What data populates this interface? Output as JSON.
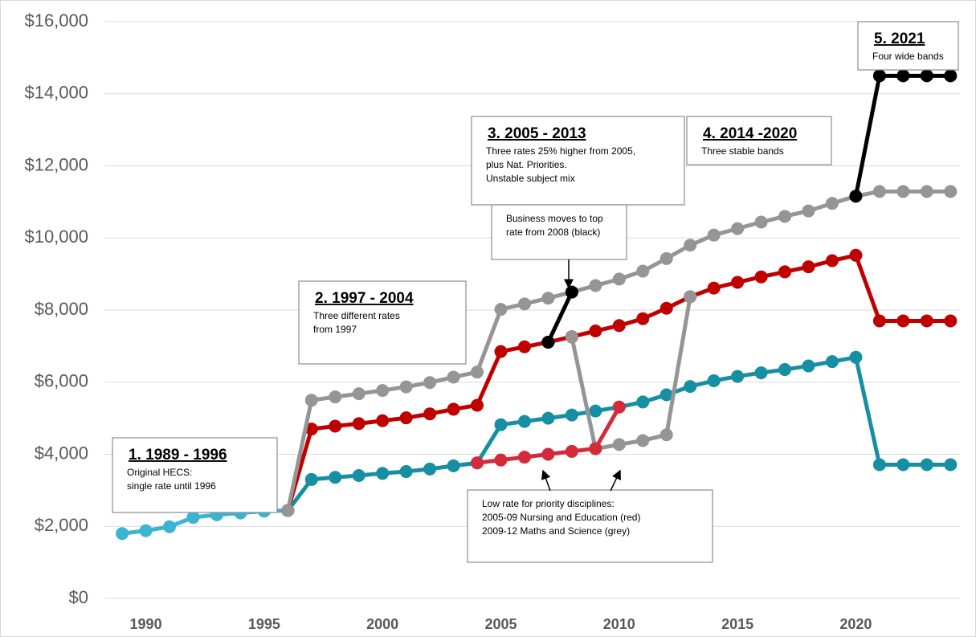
{
  "chart_data": {
    "type": "line",
    "x": [
      1989,
      1990,
      1991,
      1992,
      1993,
      1994,
      1995,
      1996,
      1997,
      1998,
      1999,
      2000,
      2001,
      2002,
      2003,
      2004,
      2005,
      2006,
      2007,
      2008,
      2009,
      2010,
      2011,
      2012,
      2013,
      2014,
      2015,
      2016,
      2017,
      2018,
      2019,
      2020,
      2021,
      2022,
      2023,
      2024
    ],
    "series": [
      {
        "color": "#3bb4d3",
        "values": [
          1800,
          1880,
          1990,
          2250,
          2320,
          2370,
          2420,
          2440,
          null,
          null,
          null,
          null,
          null,
          null,
          null,
          null,
          null,
          null,
          null,
          null,
          null,
          null,
          null,
          null,
          null,
          null,
          null,
          null,
          null,
          null,
          null,
          null,
          null,
          null,
          null,
          null
        ]
      },
      {
        "color": "#178fa3",
        "values": [
          null,
          null,
          null,
          null,
          null,
          null,
          null,
          2440,
          3300,
          3360,
          3410,
          3470,
          3520,
          3590,
          3680,
          3760,
          4820,
          4910,
          5000,
          5090,
          5200,
          5310,
          5450,
          5650,
          5880,
          6040,
          6160,
          6260,
          6350,
          6450,
          6570,
          6690,
          3710,
          3710,
          3710,
          3710
        ]
      },
      {
        "color": "#c00000",
        "values": [
          null,
          null,
          null,
          null,
          null,
          null,
          null,
          2440,
          4700,
          4780,
          4850,
          4930,
          5010,
          5120,
          5250,
          5360,
          6850,
          6980,
          7110,
          7260,
          7420,
          7570,
          7760,
          8050,
          8370,
          8610,
          8770,
          8920,
          9060,
          9200,
          9370,
          9520,
          7700,
          7700,
          7700,
          7700
        ]
      },
      {
        "color": "#959595",
        "values": [
          null,
          null,
          null,
          null,
          null,
          null,
          null,
          2440,
          5500,
          5590,
          5680,
          5770,
          5870,
          5990,
          6140,
          6280,
          8020,
          8170,
          8330,
          8500,
          8680,
          8860,
          9080,
          9430,
          9800,
          10080,
          10260,
          10440,
          10600,
          10750,
          10960,
          11160,
          11290,
          11290,
          11290,
          11290
        ]
      },
      {
        "color": "#959595",
        "values": [
          null,
          null,
          null,
          null,
          null,
          null,
          null,
          null,
          null,
          null,
          null,
          null,
          null,
          null,
          null,
          null,
          null,
          null,
          null,
          7250,
          4150,
          4270,
          4380,
          4540,
          8370,
          null,
          null,
          null,
          null,
          null,
          null,
          null,
          null,
          null,
          null,
          null
        ]
      },
      {
        "color": "#d42a3c",
        "values": [
          null,
          null,
          null,
          null,
          null,
          null,
          null,
          null,
          null,
          null,
          null,
          null,
          null,
          null,
          null,
          3760,
          3840,
          3920,
          4000,
          4080,
          4160,
          5310,
          null,
          null,
          null,
          null,
          null,
          null,
          null,
          null,
          null,
          null,
          null,
          null,
          null,
          null
        ]
      },
      {
        "color": "#000000",
        "values": [
          null,
          null,
          null,
          null,
          null,
          null,
          null,
          null,
          null,
          null,
          null,
          null,
          null,
          null,
          null,
          null,
          null,
          null,
          7110,
          8500,
          null,
          null,
          null,
          null,
          null,
          null,
          null,
          null,
          null,
          null,
          null,
          11160,
          14500,
          14500,
          14500,
          14500
        ]
      }
    ],
    "xlim": [
      1988.25,
      2024.5
    ],
    "xticks": [
      1990,
      1995,
      2000,
      2005,
      2010,
      2015,
      2020
    ],
    "ylim": [
      0,
      16000
    ],
    "yticks": [
      {
        "value": 0,
        "label": "$0"
      },
      {
        "value": 2000,
        "label": "$2,000"
      },
      {
        "value": 4000,
        "label": "$4,000"
      },
      {
        "value": 6000,
        "label": "$6,000"
      },
      {
        "value": 8000,
        "label": "$8,000"
      },
      {
        "value": 10000,
        "label": "$10,000"
      },
      {
        "value": 12000,
        "label": "$12,000"
      },
      {
        "value": 14000,
        "label": "$14,000"
      },
      {
        "value": 16000,
        "label": "$16,000"
      }
    ],
    "grid": true,
    "annotations": [
      {
        "title": "1. 1989 - 1996",
        "text": [
          "Original HECS:",
          "single rate until 1996"
        ]
      },
      {
        "title": "2. 1997 - 2004",
        "text": [
          "Three different rates",
          "from 1997"
        ]
      },
      {
        "title": "3. 2005 - 2013",
        "text": [
          "Three rates 25% higher from 2005,",
          "plus Nat. Priorities.",
          "Unstable subject mix"
        ]
      },
      {
        "title": "4. 2014 -2020",
        "text": [
          "Three stable bands"
        ]
      },
      {
        "title": "5. 2021",
        "text": [
          "Four wide bands"
        ]
      },
      {
        "text": [
          "Business moves to top",
          "rate from 2008 (black)"
        ]
      },
      {
        "text": [
          "Low rate for priority disciplines:",
          "2005-09 Nursing and Education (red)",
          "2009-12 Maths and Science (grey)"
        ]
      }
    ]
  }
}
